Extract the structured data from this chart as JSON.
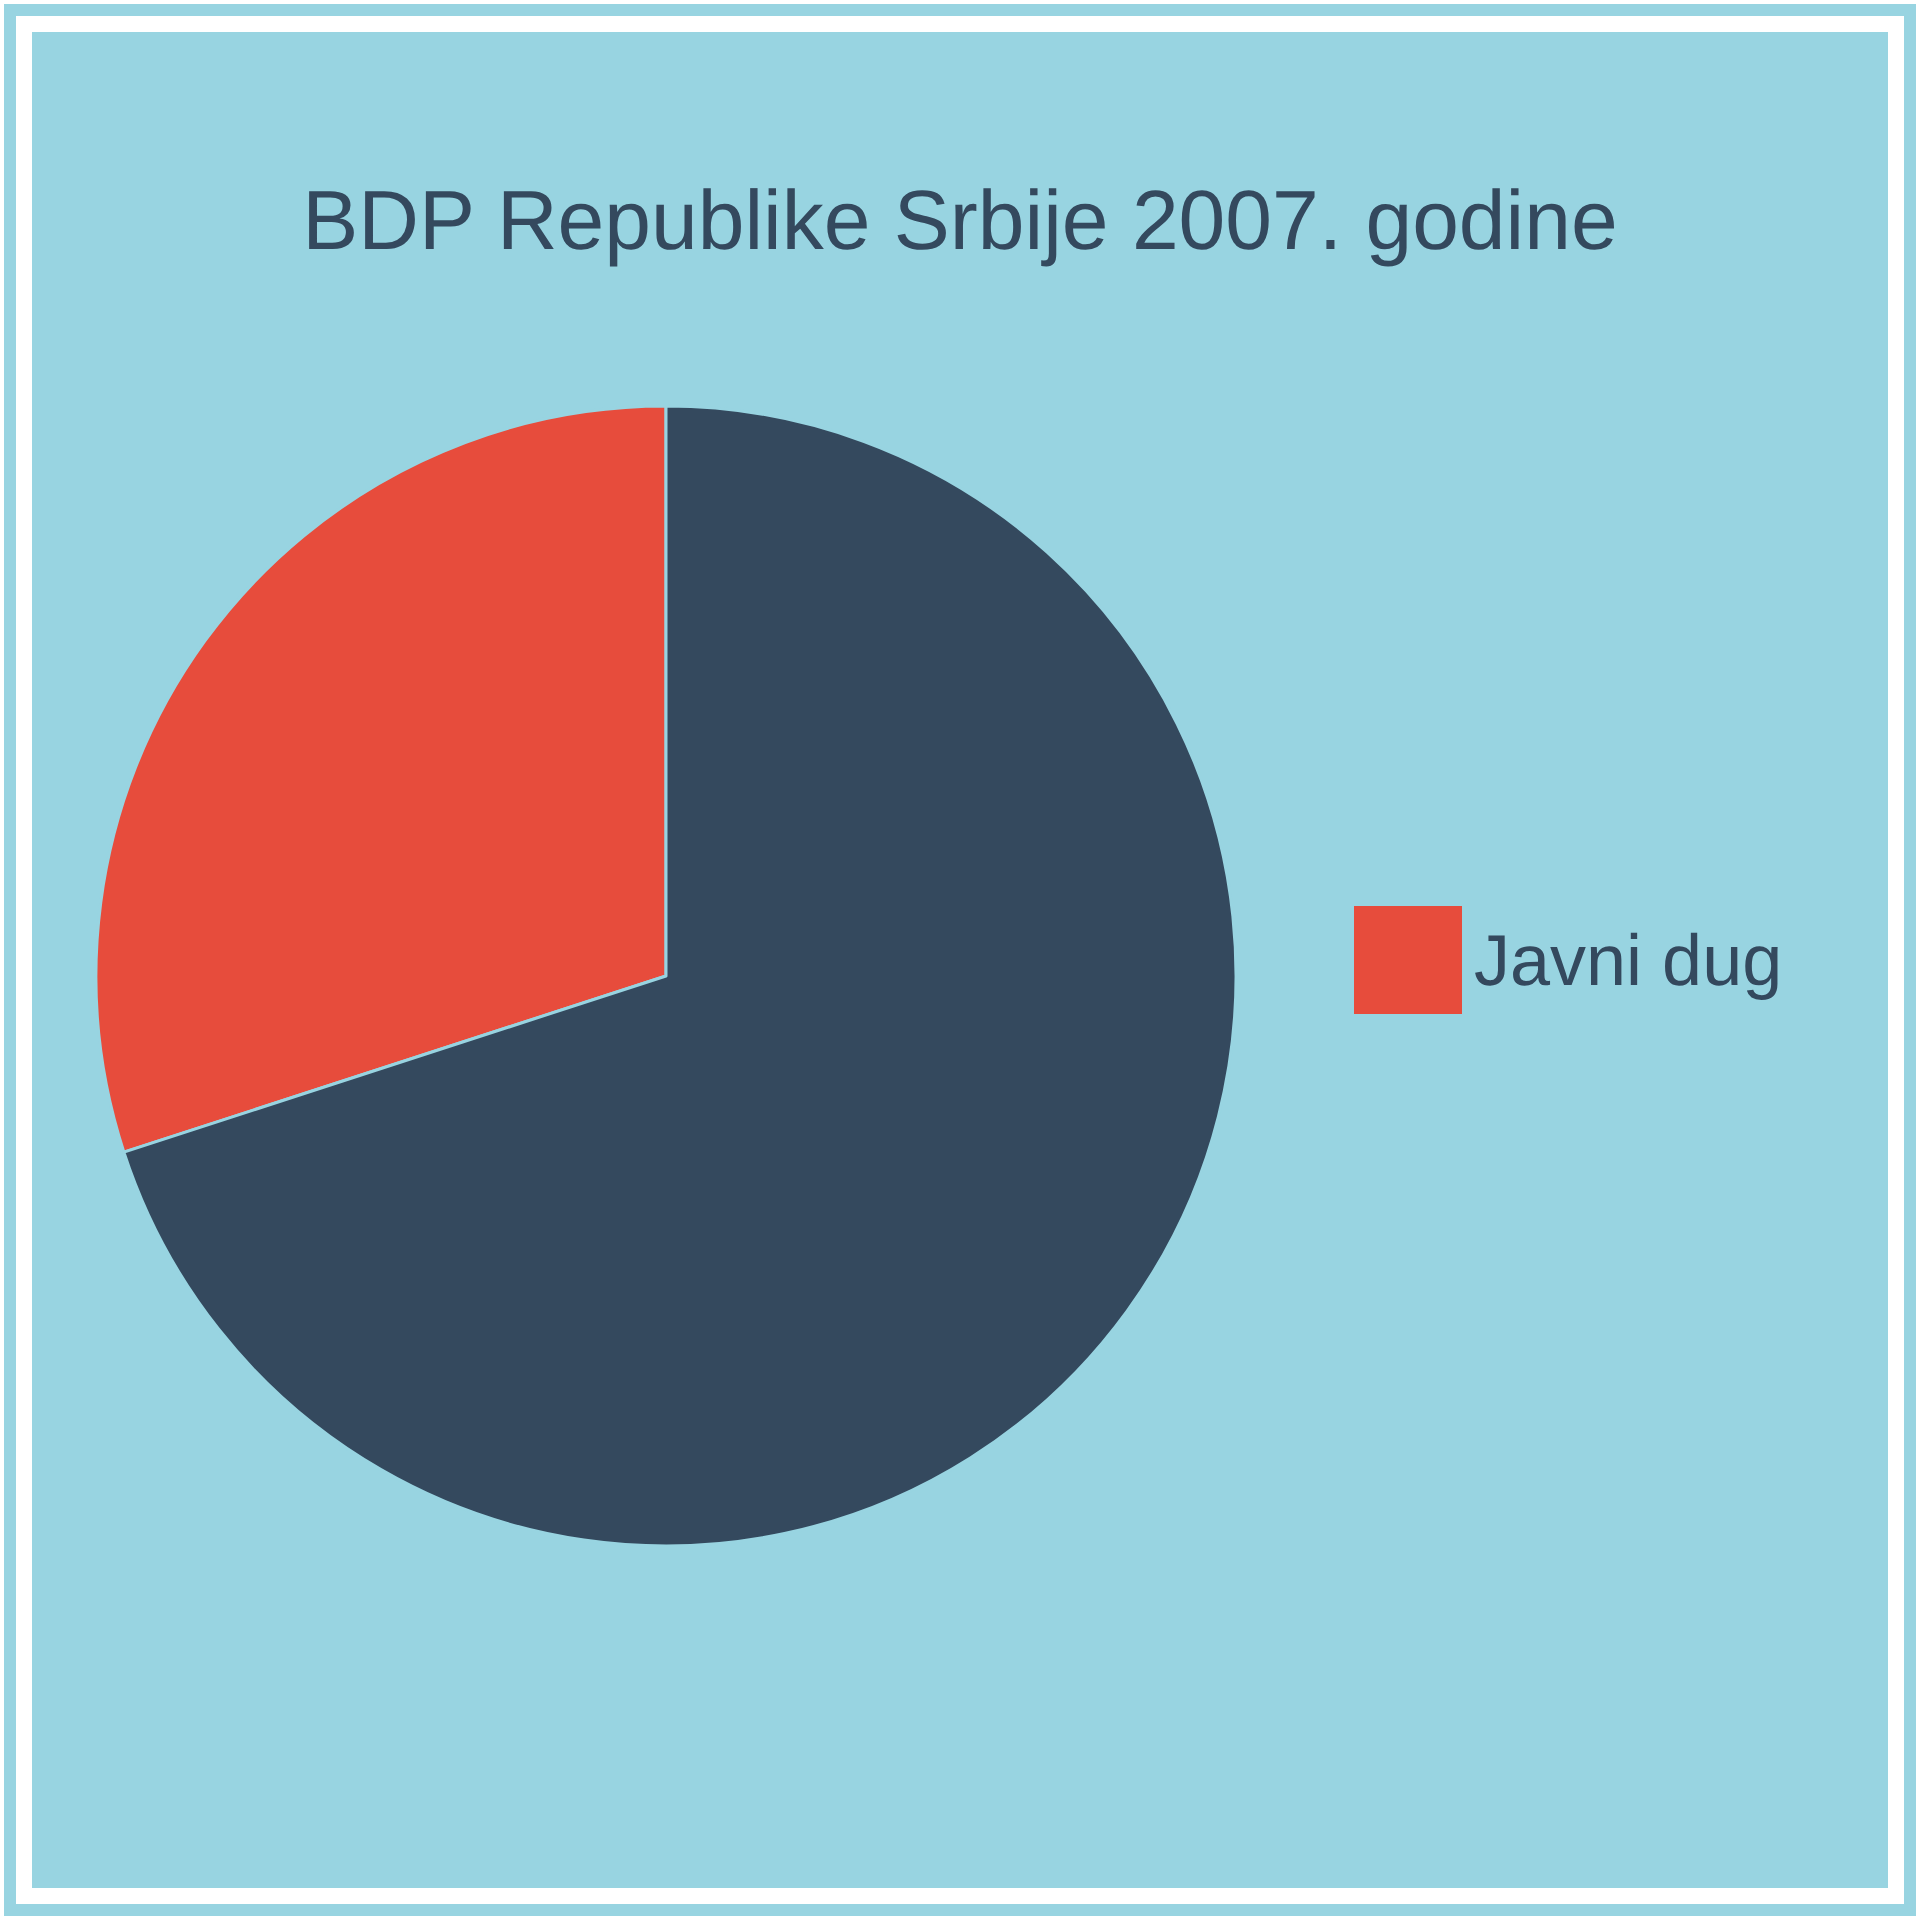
{
  "chart_data": {
    "type": "pie",
    "title": "BDP Republike Srbije 2007. godine",
    "categories": [
      "Javni dug",
      null
    ],
    "values": [
      30,
      70
    ],
    "colors": [
      "#e74c3c",
      "#34495e"
    ],
    "legend": "right"
  }
}
